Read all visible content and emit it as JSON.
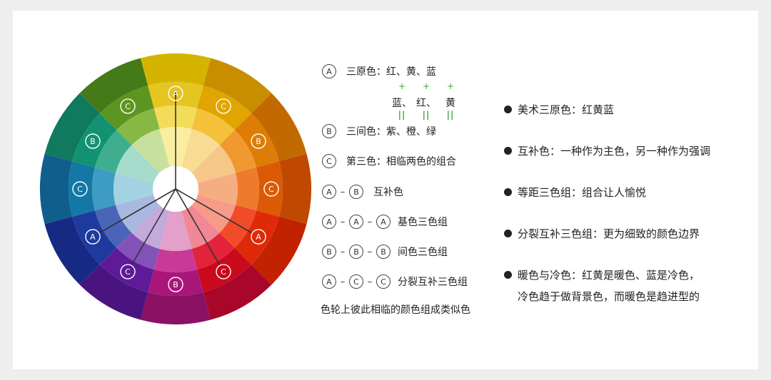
{
  "wheel": {
    "ring_colors": [
      [
        "#d5b400",
        "#e5c51f",
        "#f3dc5a",
        "#f9eda2"
      ],
      [
        "#c98e00",
        "#e0a500",
        "#f3c13a",
        "#f9dc94"
      ],
      [
        "#c26a00",
        "#de7d05",
        "#f09930",
        "#f7c78a"
      ],
      [
        "#c14800",
        "#dc5a06",
        "#ee7a2c",
        "#f5ae82"
      ],
      [
        "#c22200",
        "#df2a0a",
        "#f14b2a",
        "#f79a88"
      ],
      [
        "#a8072a",
        "#c90a1c",
        "#e2233a",
        "#f08895"
      ],
      [
        "#8a1164",
        "#a8167a",
        "#c83a98",
        "#e3a0c8"
      ],
      [
        "#4a1480",
        "#5e1a99",
        "#8252b8",
        "#c2aadb"
      ],
      [
        "#162a84",
        "#1e3a9e",
        "#4a64b8",
        "#a8b8de"
      ],
      [
        "#105e8c",
        "#1478a6",
        "#3e9cc2",
        "#a3d2e2"
      ],
      [
        "#0f7a5e",
        "#139271",
        "#3eae8e",
        "#a6dccb"
      ],
      [
        "#447a18",
        "#5c9620",
        "#86b843",
        "#c8e09e"
      ]
    ],
    "badges": [
      {
        "letter": "A",
        "slot": 0
      },
      {
        "letter": "C",
        "slot": 1
      },
      {
        "letter": "B",
        "slot": 2
      },
      {
        "letter": "C",
        "slot": 3
      },
      {
        "letter": "A",
        "slot": 4
      },
      {
        "letter": "C",
        "slot": 5
      },
      {
        "letter": "B",
        "slot": 6
      },
      {
        "letter": "C",
        "slot": 7
      },
      {
        "letter": "A",
        "slot": 8
      },
      {
        "letter": "C",
        "slot": 9
      },
      {
        "letter": "B",
        "slot": 10
      },
      {
        "letter": "C",
        "slot": 11
      }
    ]
  },
  "legend": {
    "primary": {
      "badge": "A",
      "label": "三原色：红、黄、蓝"
    },
    "stack1": [
      "+",
      "+",
      "+"
    ],
    "stack2": [
      "蓝、",
      "红、",
      "黄"
    ],
    "stack3": [
      "||",
      "||",
      "||"
    ],
    "secondary": {
      "badge": "B",
      "label": "三间色：紫、橙、绿"
    },
    "tertiary": {
      "badge": "C",
      "label": "第三色：相临两色的组合"
    },
    "complement": {
      "badges": [
        "A",
        "B"
      ],
      "label": "互补色"
    },
    "triad_base": {
      "badges": [
        "A",
        "A",
        "A"
      ],
      "label": "基色三色组"
    },
    "triad_secondary": {
      "badges": [
        "B",
        "B",
        "B"
      ],
      "label": "间色三色组"
    },
    "split": {
      "badges": [
        "A",
        "C",
        "C"
      ],
      "label": "分裂互补三色组"
    },
    "note": "色轮上彼此相临的颜色组成类似色"
  },
  "bullets": [
    {
      "text": "美术三原色：红黄蓝"
    },
    {
      "text": "互补色：一种作为主色，另一种作为强调"
    },
    {
      "text": "等距三色组：组合让人愉悦"
    },
    {
      "text": "分裂互补三色组：更为细致的颜色边界"
    },
    {
      "text": "暖色与冷色：红黄是暖色、蓝是冷色，",
      "cont": "冷色趋于做背景色，而暖色是趋进型的"
    }
  ]
}
